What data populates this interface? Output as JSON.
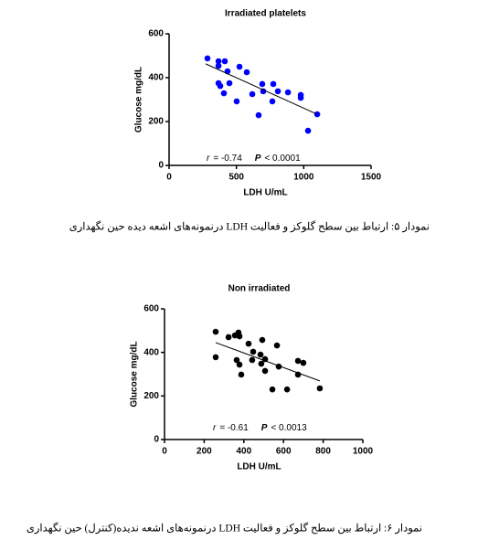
{
  "chart_data": [
    {
      "type": "scatter",
      "title": "Irradiated platelets",
      "x_label": "LDH U/mL",
      "y_label": "Glucose mg/dL",
      "color": "#0000ff",
      "x": [
        285,
        367,
        414,
        367,
        367,
        380,
        407,
        434,
        448,
        523,
        502,
        577,
        618,
        692,
        665,
        699,
        774,
        767,
        808,
        883,
        978,
        978,
        1032,
        1100
      ],
      "y": [
        488,
        475,
        475,
        454,
        375,
        362,
        329,
        429,
        375,
        450,
        292,
        425,
        325,
        371,
        229,
        338,
        371,
        292,
        338,
        333,
        321,
        308,
        158,
        233
      ],
      "trendline": {
        "x": [
          272,
          1100
        ],
        "y": [
          463,
          233
        ]
      },
      "annotation": [
        "r",
        "= -0.74",
        "P",
        "< 0.0001"
      ],
      "xlim": [
        0,
        1500
      ],
      "xticks": [
        0,
        500,
        1000,
        1500
      ],
      "ylim": [
        0,
        600
      ],
      "yticks": [
        0,
        200,
        400,
        600
      ]
    },
    {
      "type": "scatter",
      "title": "Non irradiated",
      "x_label": "LDH U/mL",
      "y_label": "Glucose mg/dL",
      "color": "#000000",
      "x": [
        258,
        258,
        323,
        355,
        373,
        378,
        364,
        378,
        387,
        424,
        442,
        447,
        484,
        493,
        488,
        507,
        507,
        544,
        567,
        576,
        618,
        673,
        700,
        673,
        783
      ],
      "y": [
        495,
        378,
        470,
        478,
        491,
        474,
        365,
        344,
        298,
        440,
        365,
        403,
        390,
        457,
        348,
        315,
        369,
        230,
        432,
        335,
        230,
        361,
        352,
        298,
        235
      ],
      "trendline": {
        "x": [
          258,
          783
        ],
        "y": [
          445,
          269
        ]
      },
      "annotation": [
        "r",
        "= -0.61",
        "P",
        "< 0.0013"
      ],
      "xlim": [
        0,
        1000
      ],
      "xticks": [
        0,
        200,
        400,
        600,
        800,
        1000
      ],
      "ylim": [
        0,
        600
      ],
      "yticks": [
        0,
        200,
        400,
        600
      ]
    }
  ],
  "captions": [
    "نمودار ۵: ارتباط بین سطح گلوکز و فعالیت LDH درنمونه‌های اشعه دیده حین نگهداری",
    "نمودار ۶: ارتباط بین سطح گلوکز و فعالیت LDH درنمونه‌های اشعه ندیده(کنترل) حین نگهداری"
  ]
}
